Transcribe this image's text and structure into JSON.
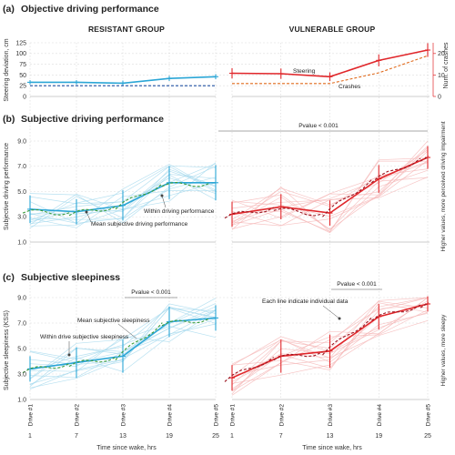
{
  "colors": {
    "resistant": "#2ba6d6",
    "resistant_light": "#a6d9ee",
    "vulnerable": "#e0262a",
    "vulnerable_light": "#f5b6b6",
    "within": "#3c9d3c",
    "within_red": "#9b1520"
  },
  "group_labels": {
    "resistant": "RESISTANT GROUP",
    "vulnerable": "VULNERABLE GROUP"
  },
  "drives": [
    "Drive #1",
    "Drive #2",
    "Drive #3",
    "Drive #4",
    "Drive #5"
  ],
  "x_ticks": [
    "1",
    "7",
    "13",
    "19",
    "25"
  ],
  "xlabel": "Time since wake, hrs",
  "chart_data": [
    {
      "type": "line",
      "panel_label": "(a)",
      "title": "Objective driving performance",
      "ylabel": "Steering deviation, cm",
      "y2label": "Num. of crashes",
      "ylim": [
        0,
        125
      ],
      "yticks": [
        "0",
        "25",
        "50",
        "75",
        "100",
        "125"
      ],
      "y2lim": [
        0,
        25
      ],
      "y2ticks": [
        "0",
        "10",
        "20"
      ],
      "x": [
        1,
        7,
        13,
        19,
        25
      ],
      "annotations": {
        "steering": "Steering",
        "crashes": "Crashes"
      },
      "series": [
        {
          "group": "resistant",
          "kind": "steering",
          "values": [
            33,
            33,
            31,
            42,
            46
          ],
          "err": [
            5,
            5,
            6,
            6,
            6
          ]
        },
        {
          "group": "resistant",
          "kind": "crashes",
          "values": [
            5,
            5,
            5,
            5,
            5
          ]
        },
        {
          "group": "vulnerable",
          "kind": "steering",
          "values": [
            54,
            53,
            46,
            84,
            108
          ],
          "err": [
            12,
            12,
            10,
            14,
            16
          ]
        },
        {
          "group": "vulnerable",
          "kind": "crashes",
          "values": [
            6,
            6,
            6,
            11,
            19
          ]
        }
      ]
    },
    {
      "type": "line",
      "panel_label": "(b)",
      "title": "Subjective driving performance",
      "ylabel": "Subjective driving performance",
      "side_label": "Higher values, more perceived driving impairment",
      "ylim": [
        1,
        9
      ],
      "yticks": [
        "1.0",
        "3.0",
        "5.0",
        "7.0",
        "9.0"
      ],
      "x": [
        1,
        7,
        13,
        19,
        25
      ],
      "pvalue": "Pvalue < 0.001",
      "annotations": {
        "within": "Within driving performance",
        "mean": "Mean subjective driving performance"
      },
      "series": [
        {
          "group": "resistant",
          "kind": "mean",
          "values": [
            3.6,
            3.4,
            3.9,
            5.7,
            5.7
          ],
          "err": [
            1.1,
            1.0,
            1.2,
            1.3,
            1.4
          ]
        },
        {
          "group": "vulnerable",
          "kind": "mean",
          "values": [
            3.2,
            3.8,
            3.3,
            6.0,
            7.7
          ],
          "err": [
            1.0,
            1.0,
            1.0,
            1.1,
            0.9
          ]
        }
      ]
    },
    {
      "type": "line",
      "panel_label": "(c)",
      "title": "Subjective sleepiness",
      "ylabel": "Subjective sleepiness (KSS)",
      "side_label": "Higher values, more sleepy",
      "ylim": [
        1,
        9
      ],
      "yticks": [
        "1.0",
        "3.0",
        "5.0",
        "7.0",
        "9.0"
      ],
      "x": [
        1,
        7,
        13,
        19,
        25
      ],
      "pvalues": [
        "Pvalue < 0.001",
        "Pvalue < 0.001"
      ],
      "annotations": {
        "mean": "Mean subjective sleepiness",
        "within": "Within drive subjective sleepiness",
        "individual": "Each line indicate individual data"
      },
      "series": [
        {
          "group": "resistant",
          "kind": "mean",
          "values": [
            3.4,
            3.9,
            4.4,
            7.1,
            7.4
          ],
          "err": [
            1.0,
            1.2,
            1.3,
            1.2,
            1.0
          ]
        },
        {
          "group": "vulnerable",
          "kind": "mean",
          "values": [
            2.7,
            4.4,
            4.8,
            7.5,
            8.5
          ],
          "err": [
            1.0,
            1.3,
            1.3,
            1.0,
            0.6
          ]
        }
      ]
    }
  ]
}
